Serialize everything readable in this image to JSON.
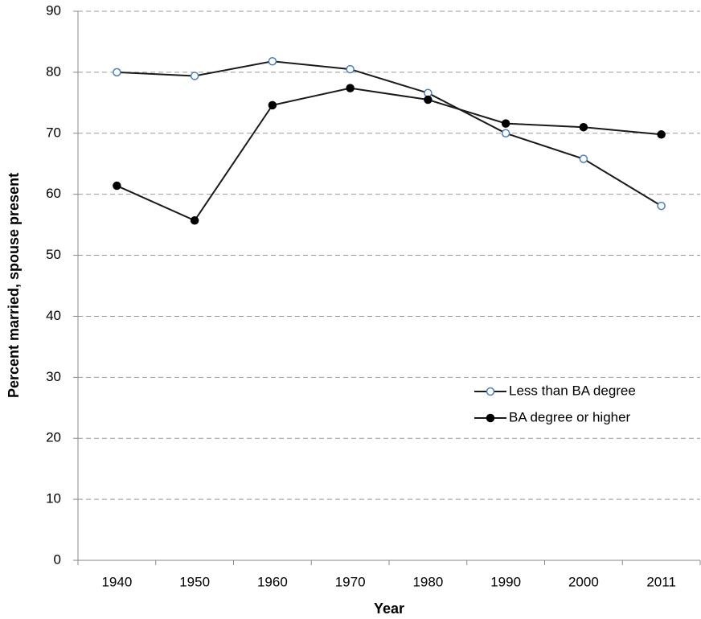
{
  "chart_data": {
    "type": "line",
    "x_label": "Year",
    "y_label": "Percent married, spouse present",
    "categories": [
      "1940",
      "1950",
      "1960",
      "1970",
      "1980",
      "1990",
      "2000",
      "2011"
    ],
    "series": [
      {
        "name": "Less than BA degree",
        "color": "#1a1a1a",
        "marker_fill": "#ffffff",
        "marker_edge": "#4a7ebb",
        "values": [
          80.0,
          79.4,
          81.8,
          80.5,
          76.6,
          70.0,
          65.8,
          58.1
        ]
      },
      {
        "name": "BA degree or higher",
        "color": "#1a1a1a",
        "marker_fill": "#000000",
        "marker_edge": "#000000",
        "values": [
          61.4,
          55.7,
          74.6,
          77.4,
          75.5,
          71.6,
          71.0,
          69.8
        ]
      }
    ],
    "ylim": [
      0,
      90
    ],
    "yticks": [
      0,
      10,
      20,
      30,
      40,
      50,
      60,
      70,
      80,
      90
    ],
    "grid": true,
    "legend": "right"
  }
}
